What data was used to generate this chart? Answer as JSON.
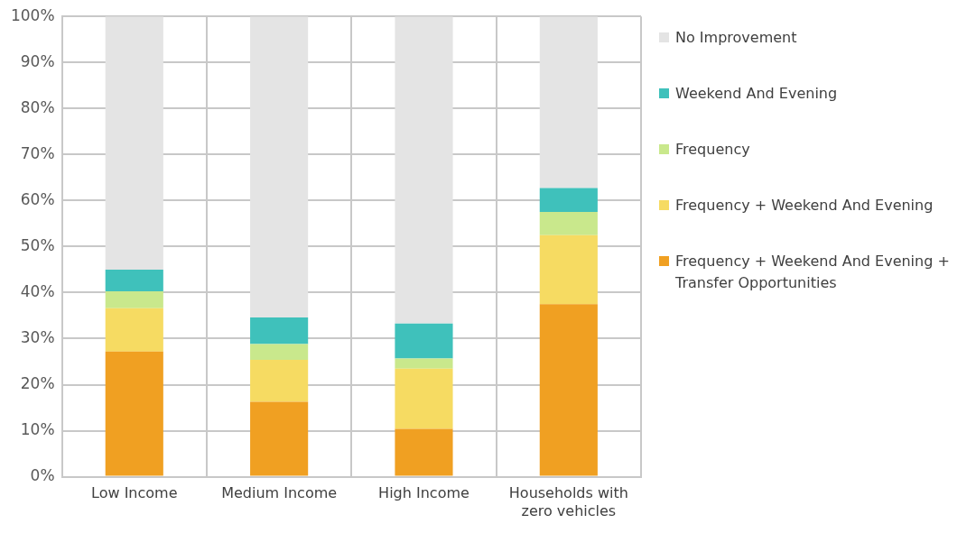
{
  "chart_data": {
    "type": "bar",
    "stacked": true,
    "categories": [
      "Low Income",
      "Medium Income",
      "High Income",
      "Households with zero vehicles"
    ],
    "series": [
      {
        "name": "Frequency + Weekend And Evening + Transfer Opportunities",
        "color": "#f0a022",
        "values": [
          27.2,
          16.3,
          10.4,
          37.5
        ]
      },
      {
        "name": "Frequency + Weekend And Evening",
        "color": "#f6db62",
        "values": [
          9.4,
          9.1,
          13.1,
          15.0
        ]
      },
      {
        "name": "Frequency",
        "color": "#c9e88c",
        "values": [
          3.7,
          3.4,
          2.2,
          5.0
        ]
      },
      {
        "name": "Weekend And Evening",
        "color": "#3fc1bb",
        "values": [
          4.7,
          5.8,
          7.6,
          5.2
        ]
      },
      {
        "name": "No Improvement",
        "color": "#e4e4e4",
        "values": [
          55.0,
          65.4,
          66.7,
          37.3
        ]
      }
    ],
    "ylim": [
      0,
      100
    ],
    "yticks": [
      {
        "value": 0,
        "label": "0%"
      },
      {
        "value": 10,
        "label": "10%"
      },
      {
        "value": 20,
        "label": "20%"
      },
      {
        "value": 30,
        "label": "30%"
      },
      {
        "value": 40,
        "label": "40%"
      },
      {
        "value": 50,
        "label": "50%"
      },
      {
        "value": 60,
        "label": "60%"
      },
      {
        "value": 70,
        "label": "70%"
      },
      {
        "value": 80,
        "label": "80%"
      },
      {
        "value": 90,
        "label": "90%"
      },
      {
        "value": 100,
        "label": "100%"
      }
    ],
    "grid": true,
    "legend": "right"
  }
}
